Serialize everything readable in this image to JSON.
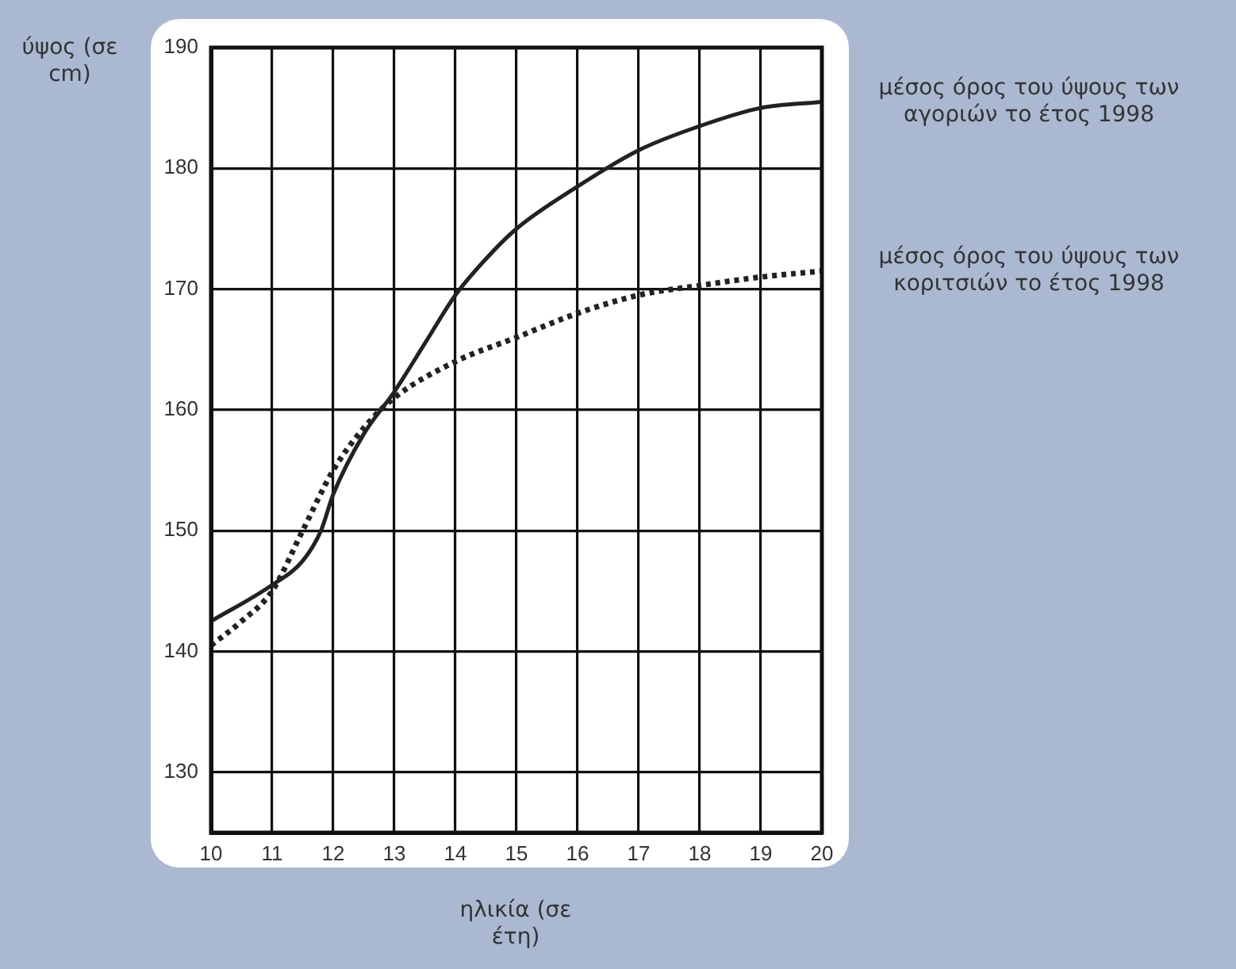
{
  "chart_data": {
    "type": "line",
    "xlabel": "ηλικία (σε έτη)",
    "ylabel": "ύψος (σε cm)",
    "xlim": [
      10,
      20
    ],
    "xticks": [
      10,
      11,
      12,
      13,
      14,
      15,
      16,
      17,
      18,
      19,
      20
    ],
    "ylim": [
      125,
      190
    ],
    "yticks": [
      130,
      140,
      150,
      160,
      170,
      180,
      190
    ],
    "grid": true,
    "legend": false,
    "marker": "none",
    "series": [
      {
        "name": "μέσος όρος του ύψους των αγοριών το έτος 1998",
        "color": "#222222",
        "line_style": "solid",
        "x": [
          10,
          11,
          11.5,
          11.8,
          12,
          12.5,
          13,
          13.5,
          14,
          14.5,
          15,
          16,
          17,
          18,
          19,
          20
        ],
        "values": [
          142.5,
          145.5,
          147.5,
          150,
          153,
          158,
          161.5,
          165.5,
          169.5,
          172.5,
          175,
          178.5,
          181.5,
          183.5,
          185,
          185.5
        ]
      },
      {
        "name": "μέσος όρος του ύψους των κοριτσιών το έτος 1998",
        "color": "#222222",
        "line_style": "dotted",
        "x": [
          10,
          10.5,
          11,
          11.5,
          12,
          12.5,
          13,
          14,
          15,
          16,
          17,
          18,
          19,
          20
        ],
        "values": [
          140.5,
          142.5,
          145,
          150,
          155,
          158.5,
          161,
          164,
          166,
          168,
          169.5,
          170.3,
          171,
          171.5
        ]
      }
    ]
  }
}
